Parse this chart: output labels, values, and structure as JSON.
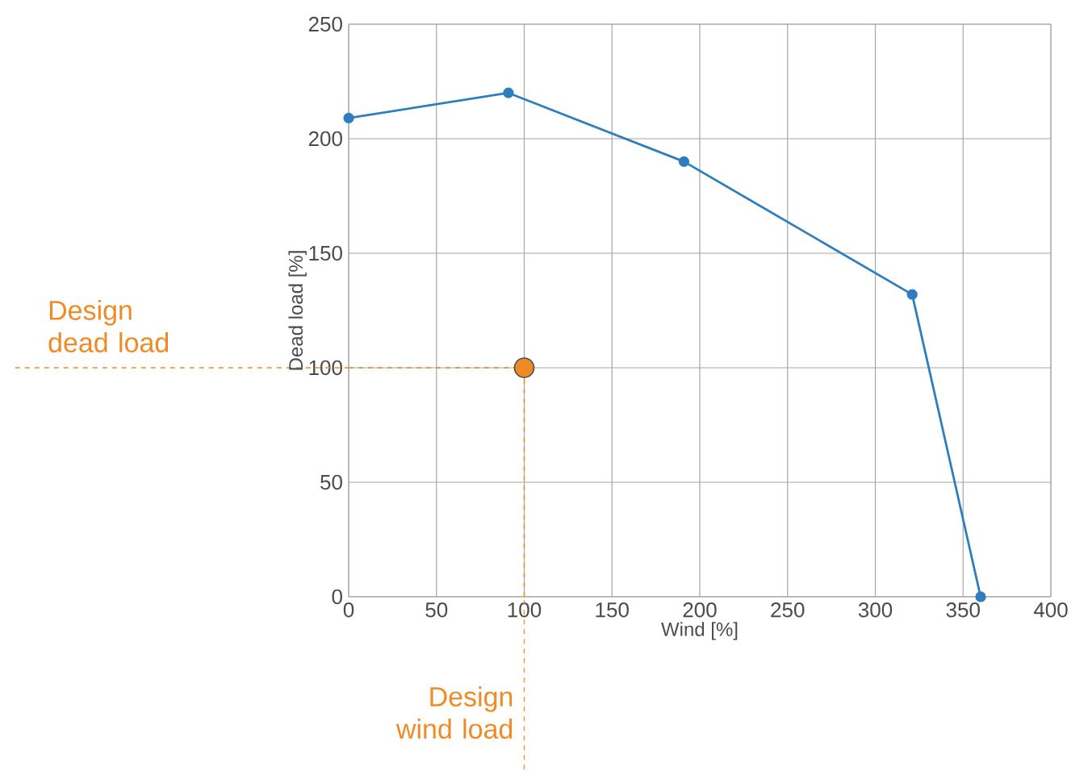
{
  "chart_data": {
    "type": "line",
    "xlabel": "Wind [%]",
    "ylabel": "Dead load [%]",
    "xlim": [
      0,
      400
    ],
    "ylim": [
      0,
      250
    ],
    "xticks": [
      0,
      50,
      100,
      150,
      200,
      250,
      300,
      350,
      400
    ],
    "yticks": [
      0,
      50,
      100,
      150,
      200,
      250
    ],
    "grid": true,
    "marker": "circle",
    "series": [
      {
        "color": "#2e7ebf",
        "x": [
          0,
          91,
          191,
          321,
          360
        ],
        "values": [
          209,
          220,
          190,
          132,
          0
        ]
      },
      {
        "type": "scatter",
        "color": "#f08a24",
        "x": [
          100
        ],
        "values": [
          100
        ]
      }
    ],
    "ref_lines": [
      {
        "axis": "y",
        "value": 100,
        "label": "Design dead load",
        "color": "#f08a24",
        "line_style": "dashed"
      },
      {
        "axis": "x",
        "value": 100,
        "label": "Design wind load",
        "color": "#f08a24",
        "line_style": "dashed"
      }
    ]
  }
}
